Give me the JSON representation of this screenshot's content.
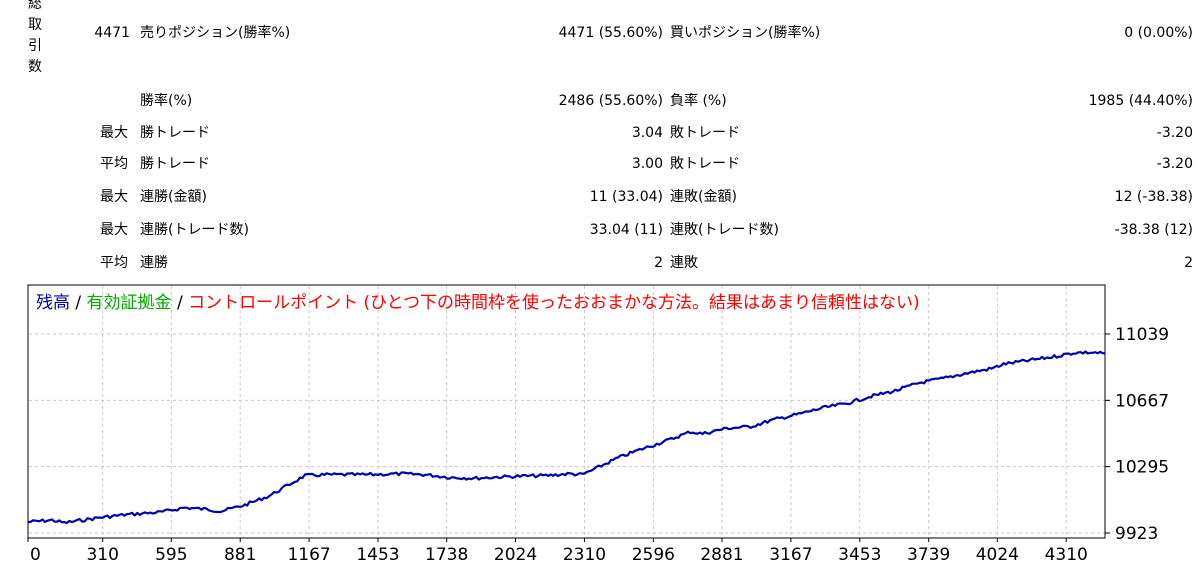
{
  "stats": {
    "side_label_chars": [
      "総",
      "取",
      "引",
      "数"
    ],
    "total_trades": "4471",
    "rows": [
      {
        "prefix": "",
        "label": "売りポジション(勝率%)",
        "value": "4471 (55.60%)",
        "label2": "買いポジション(勝率%)",
        "value2": "0 (0.00%)"
      },
      {
        "prefix": "",
        "label": "勝率(%)",
        "value": "2486 (55.60%)",
        "label2": "負率 (%)",
        "value2": "1985 (44.40%)"
      },
      {
        "prefix": "最大",
        "label": "勝トレード",
        "value": "3.04",
        "label2": "敗トレード",
        "value2": "-3.20"
      },
      {
        "prefix": "平均",
        "label": "勝トレード",
        "value": "3.00",
        "label2": "敗トレード",
        "value2": "-3.20"
      },
      {
        "prefix": "最大",
        "label": "連勝(金額)",
        "value": "11 (33.04)",
        "label2": "連敗(金額)",
        "value2": "12 (-38.38)"
      },
      {
        "prefix": "最大",
        "label": "連勝(トレード数)",
        "value": "33.04 (11)",
        "label2": "連敗(トレード数)",
        "value2": "-38.38 (12)"
      },
      {
        "prefix": "平均",
        "label": "連勝",
        "value": "2",
        "label2": "連敗",
        "value2": "2"
      }
    ]
  },
  "chart_data": {
    "type": "line",
    "legend": [
      {
        "text": "残高",
        "color": "#0000aa"
      },
      {
        "text": " / ",
        "color": "#000000"
      },
      {
        "text": "有効証拠金",
        "color": "#00aa00"
      },
      {
        "text": " / ",
        "color": "#000000"
      },
      {
        "text": "コントロールポイント (ひとつ下の時間枠を使ったおおまかな方法。結果はあまり信頼性はない)",
        "color": "#ff0000"
      }
    ],
    "x_ticks": [
      0,
      310,
      595,
      881,
      1167,
      1453,
      1738,
      2024,
      2310,
      2596,
      2881,
      3167,
      3453,
      3739,
      4024,
      4310
    ],
    "y_ticks": [
      11039,
      10667,
      10295,
      9923
    ],
    "xlim": [
      0,
      4471
    ],
    "ylim": [
      9923,
      11039
    ],
    "grid": true,
    "series": [
      {
        "name": "残高",
        "color": "#0000aa",
        "x": [
          0,
          100,
          150,
          300,
          400,
          550,
          650,
          750,
          800,
          900,
          1000,
          1150,
          1250,
          1400,
          1550,
          1650,
          1750,
          1850,
          2000,
          2150,
          2250,
          2300,
          2350,
          2450,
          2550,
          2650,
          2750,
          2800,
          2900,
          3000,
          3100,
          3200,
          3300,
          3400,
          3500,
          3600,
          3700,
          3800,
          3900,
          4000,
          4050,
          4150,
          4250,
          4350,
          4420,
          4471
        ],
        "y": [
          9985,
          9995,
          9980,
          10010,
          10025,
          10040,
          10065,
          10055,
          10045,
          10080,
          10130,
          10245,
          10250,
          10250,
          10255,
          10250,
          10235,
          10230,
          10240,
          10245,
          10255,
          10250,
          10280,
          10345,
          10395,
          10440,
          10490,
          10480,
          10510,
          10520,
          10560,
          10590,
          10625,
          10650,
          10690,
          10720,
          10765,
          10790,
          10820,
          10845,
          10870,
          10890,
          10910,
          10935,
          10935,
          10930
        ]
      }
    ]
  }
}
